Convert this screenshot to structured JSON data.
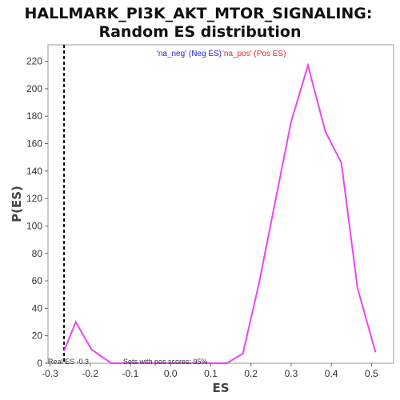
{
  "chart_data": {
    "type": "line",
    "title_line1": "HALLMARK_PI3K_AKT_MTOR_SIGNALING:",
    "title_line2": "Random ES distribution",
    "xlabel": "ES",
    "ylabel": "P(ES)",
    "xlim": [
      -0.305,
      0.555
    ],
    "ylim": [
      0,
      232
    ],
    "xticks": [
      -0.3,
      -0.2,
      -0.1,
      0.0,
      0.1,
      0.2,
      0.3,
      0.4,
      0.5
    ],
    "xtick_labels": [
      "-0.3",
      "-0.2",
      "-0.1",
      "0.0",
      "0.1",
      "0.2",
      "0.3",
      "0.4",
      "0.5"
    ],
    "yticks": [
      0,
      20,
      40,
      60,
      80,
      100,
      120,
      140,
      160,
      180,
      200,
      220
    ],
    "ytick_labels": [
      "0",
      "20",
      "40",
      "60",
      "80",
      "100",
      "120",
      "140",
      "160",
      "180",
      "200",
      "220"
    ],
    "grid": false,
    "legend": {
      "placement": "top-center",
      "neg_label": "'na_neg' (Neg ES)",
      "pos_label": "'na_pos' (Pos ES)",
      "neg_color": "#2222ee",
      "pos_color": "#ee2222"
    },
    "series": [
      {
        "color": "#ee44ee",
        "x": [
          -0.265,
          -0.236,
          -0.197,
          -0.148,
          -0.1,
          0.14,
          0.18,
          0.22,
          0.26,
          0.3,
          0.342,
          0.385,
          0.425,
          0.465,
          0.51
        ],
        "y": [
          9,
          30,
          10,
          0,
          0,
          0,
          7,
          58,
          117,
          176,
          217,
          169,
          146,
          55,
          8
        ]
      }
    ],
    "real_es": {
      "value": -0.265,
      "label": "Real ES -0.3",
      "color": "#000000"
    },
    "annotation": "Sets with pos scores: 95%"
  }
}
